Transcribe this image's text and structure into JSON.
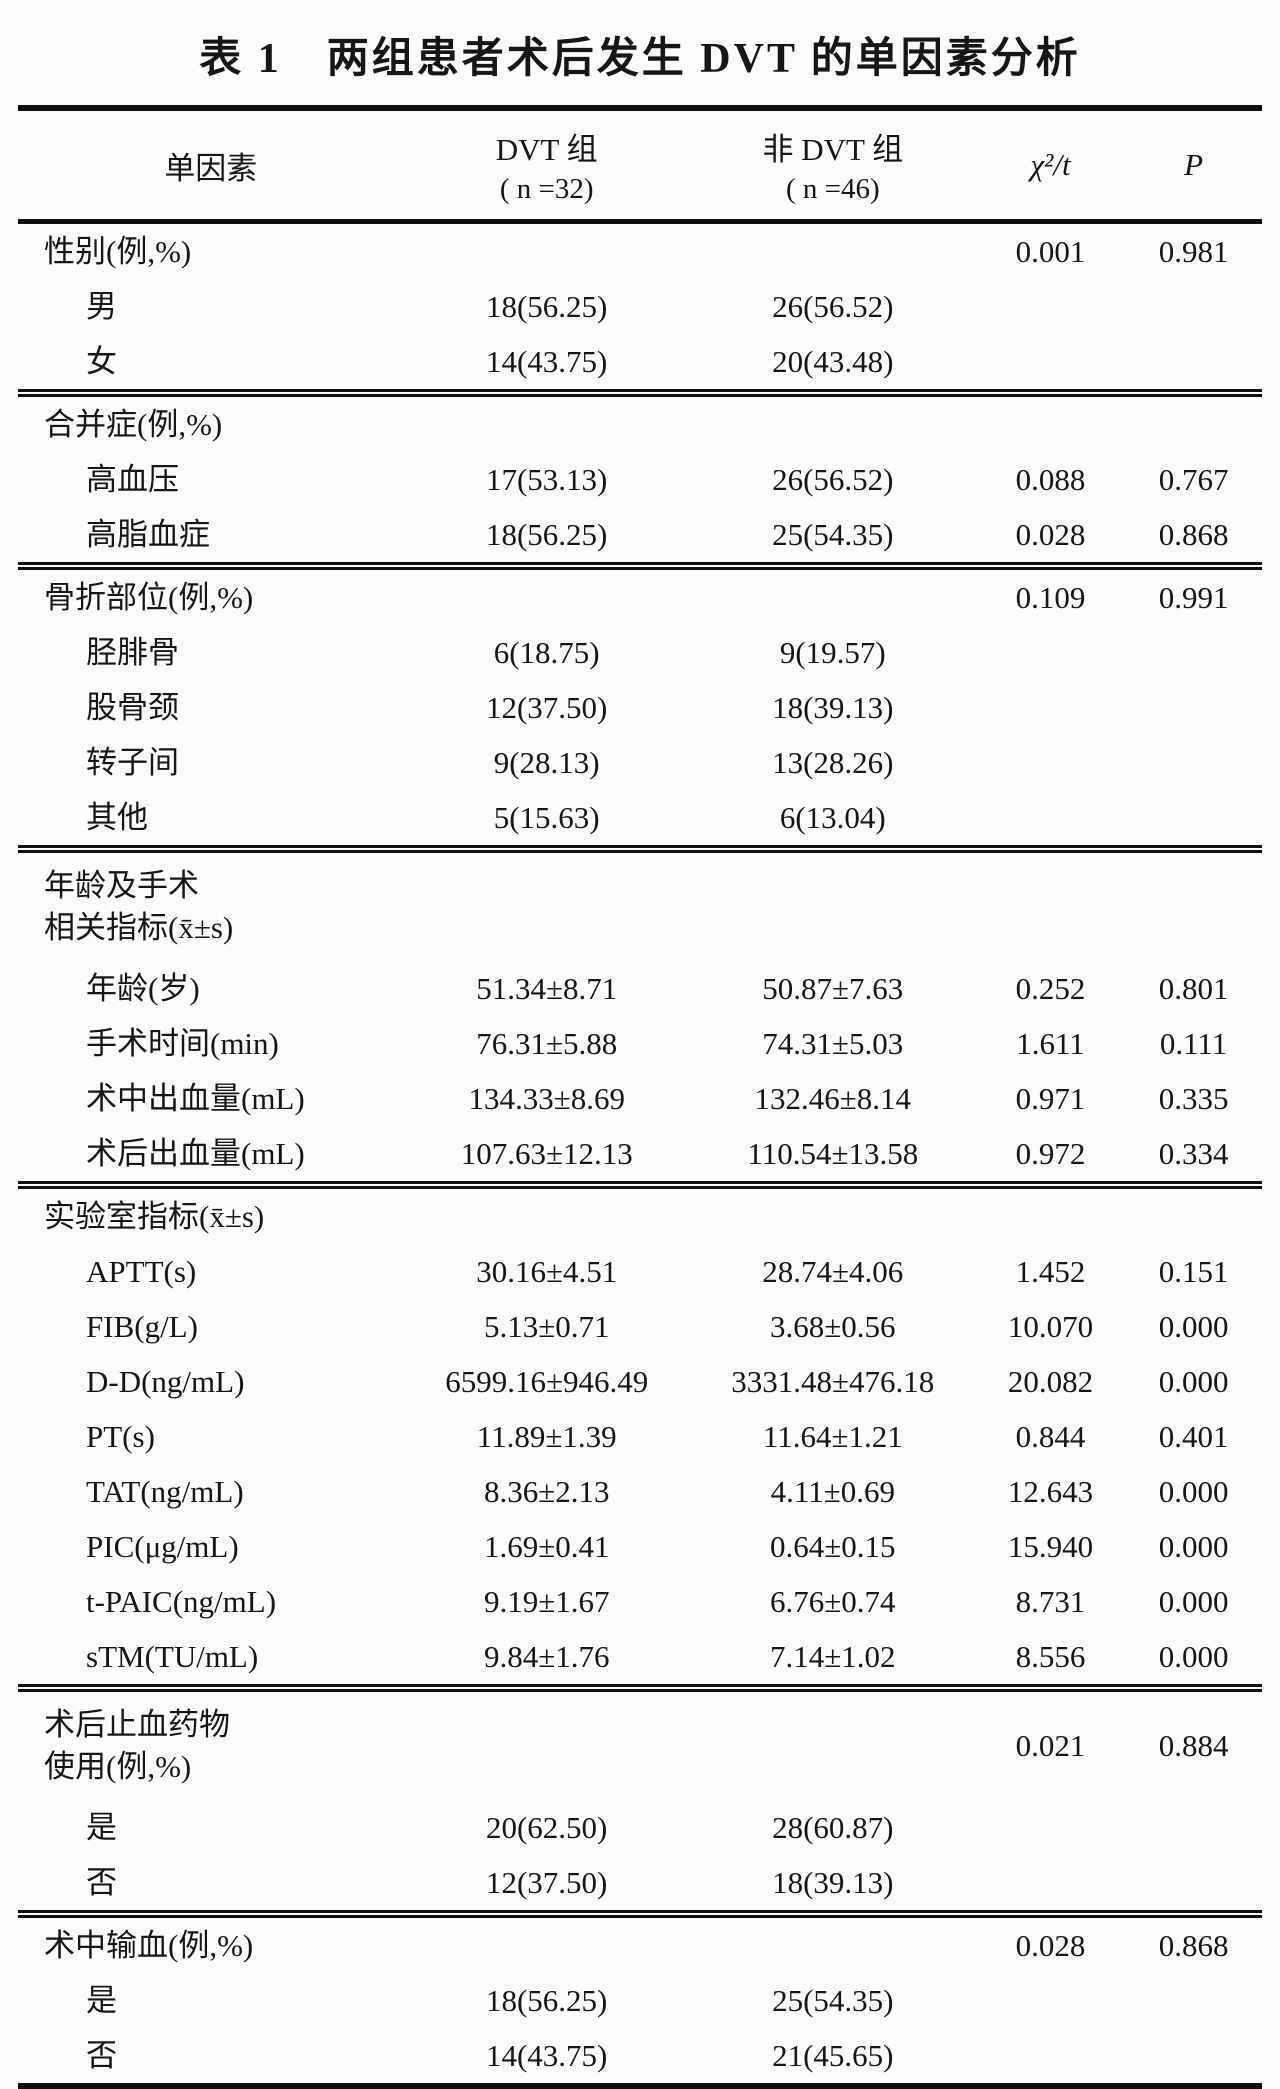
{
  "page": {
    "title": "表 1　两组患者术后发生 DVT 的单因素分析"
  },
  "header": {
    "factor": "单因素",
    "dvt_group_line1": "DVT 组",
    "dvt_group_line2": "( n =32)",
    "non_dvt_group_line1": "非 DVT 组",
    "non_dvt_group_line2": "( n =46)",
    "statistic": "χ²/t",
    "p_value": "P"
  },
  "sections": [
    {
      "rows": [
        {
          "label": "性别(例,%)",
          "indent": false,
          "chi": "0.001",
          "p": "0.981"
        },
        {
          "label": "男",
          "indent": true,
          "dvt": "18(56.25)",
          "non_dvt": "26(56.52)"
        },
        {
          "label": "女",
          "indent": true,
          "dvt": "14(43.75)",
          "non_dvt": "20(43.48)"
        }
      ]
    },
    {
      "rows": [
        {
          "label": "合并症(例,%)",
          "indent": false
        },
        {
          "label": "高血压",
          "indent": true,
          "dvt": "17(53.13)",
          "non_dvt": "26(56.52)",
          "chi": "0.088",
          "p": "0.767"
        },
        {
          "label": "高脂血症",
          "indent": true,
          "dvt": "18(56.25)",
          "non_dvt": "25(54.35)",
          "chi": "0.028",
          "p": "0.868"
        }
      ]
    },
    {
      "rows": [
        {
          "label": "骨折部位(例,%)",
          "indent": false,
          "chi": "0.109",
          "p": "0.991"
        },
        {
          "label": "胫腓骨",
          "indent": true,
          "dvt": "6(18.75)",
          "non_dvt": "9(19.57)"
        },
        {
          "label": "股骨颈",
          "indent": true,
          "dvt": "12(37.50)",
          "non_dvt": "18(39.13)"
        },
        {
          "label": "转子间",
          "indent": true,
          "dvt": "9(28.13)",
          "non_dvt": "13(28.26)"
        },
        {
          "label": "其他",
          "indent": true,
          "dvt": "5(15.63)",
          "non_dvt": "6(13.04)"
        }
      ]
    },
    {
      "rows": [
        {
          "label": "年龄及手术",
          "label2": "相关指标(x̄±s)",
          "indent": false
        },
        {
          "label": "年龄(岁)",
          "indent": true,
          "dvt": "51.34±8.71",
          "non_dvt": "50.87±7.63",
          "chi": "0.252",
          "p": "0.801"
        },
        {
          "label": "手术时间(min)",
          "indent": true,
          "dvt": "76.31±5.88",
          "non_dvt": "74.31±5.03",
          "chi": "1.611",
          "p": "0.111"
        },
        {
          "label": "术中出血量(mL)",
          "indent": true,
          "dvt": "134.33±8.69",
          "non_dvt": "132.46±8.14",
          "chi": "0.971",
          "p": "0.335"
        },
        {
          "label": "术后出血量(mL)",
          "indent": true,
          "dvt": "107.63±12.13",
          "non_dvt": "110.54±13.58",
          "chi": "0.972",
          "p": "0.334"
        }
      ]
    },
    {
      "rows": [
        {
          "label": "实验室指标(x̄±s)",
          "indent": false
        },
        {
          "label": "APTT(s)",
          "indent": true,
          "dvt": "30.16±4.51",
          "non_dvt": "28.74±4.06",
          "chi": "1.452",
          "p": "0.151"
        },
        {
          "label": "FIB(g/L)",
          "indent": true,
          "dvt": "5.13±0.71",
          "non_dvt": "3.68±0.56",
          "chi": "10.070",
          "p": "0.000"
        },
        {
          "label": "D-D(ng/mL)",
          "indent": true,
          "dvt": "6599.16±946.49",
          "non_dvt": "3331.48±476.18",
          "chi": "20.082",
          "p": "0.000"
        },
        {
          "label": "PT(s)",
          "indent": true,
          "dvt": "11.89±1.39",
          "non_dvt": "11.64±1.21",
          "chi": "0.844",
          "p": "0.401"
        },
        {
          "label": "TAT(ng/mL)",
          "indent": true,
          "dvt": "8.36±2.13",
          "non_dvt": "4.11±0.69",
          "chi": "12.643",
          "p": "0.000"
        },
        {
          "label": "PIC(μg/mL)",
          "indent": true,
          "dvt": "1.69±0.41",
          "non_dvt": "0.64±0.15",
          "chi": "15.940",
          "p": "0.000"
        },
        {
          "label": "t-PAIC(ng/mL)",
          "indent": true,
          "dvt": "9.19±1.67",
          "non_dvt": "6.76±0.74",
          "chi": "8.731",
          "p": "0.000"
        },
        {
          "label": "sTM(TU/mL)",
          "indent": true,
          "dvt": "9.84±1.76",
          "non_dvt": "7.14±1.02",
          "chi": "8.556",
          "p": "0.000"
        }
      ]
    },
    {
      "rows": [
        {
          "label": "术后止血药物",
          "label2": "使用(例,%)",
          "indent": false,
          "chi": "0.021",
          "p": "0.884"
        },
        {
          "label": "是",
          "indent": true,
          "dvt": "20(62.50)",
          "non_dvt": "28(60.87)"
        },
        {
          "label": "否",
          "indent": true,
          "dvt": "12(37.50)",
          "non_dvt": "18(39.13)"
        }
      ]
    },
    {
      "rows": [
        {
          "label": "术中输血(例,%)",
          "indent": false,
          "chi": "0.028",
          "p": "0.868"
        },
        {
          "label": "是",
          "indent": true,
          "dvt": "18(56.25)",
          "non_dvt": "25(54.35)"
        },
        {
          "label": "否",
          "indent": true,
          "dvt": "14(43.75)",
          "non_dvt": "21(45.65)"
        }
      ]
    }
  ]
}
